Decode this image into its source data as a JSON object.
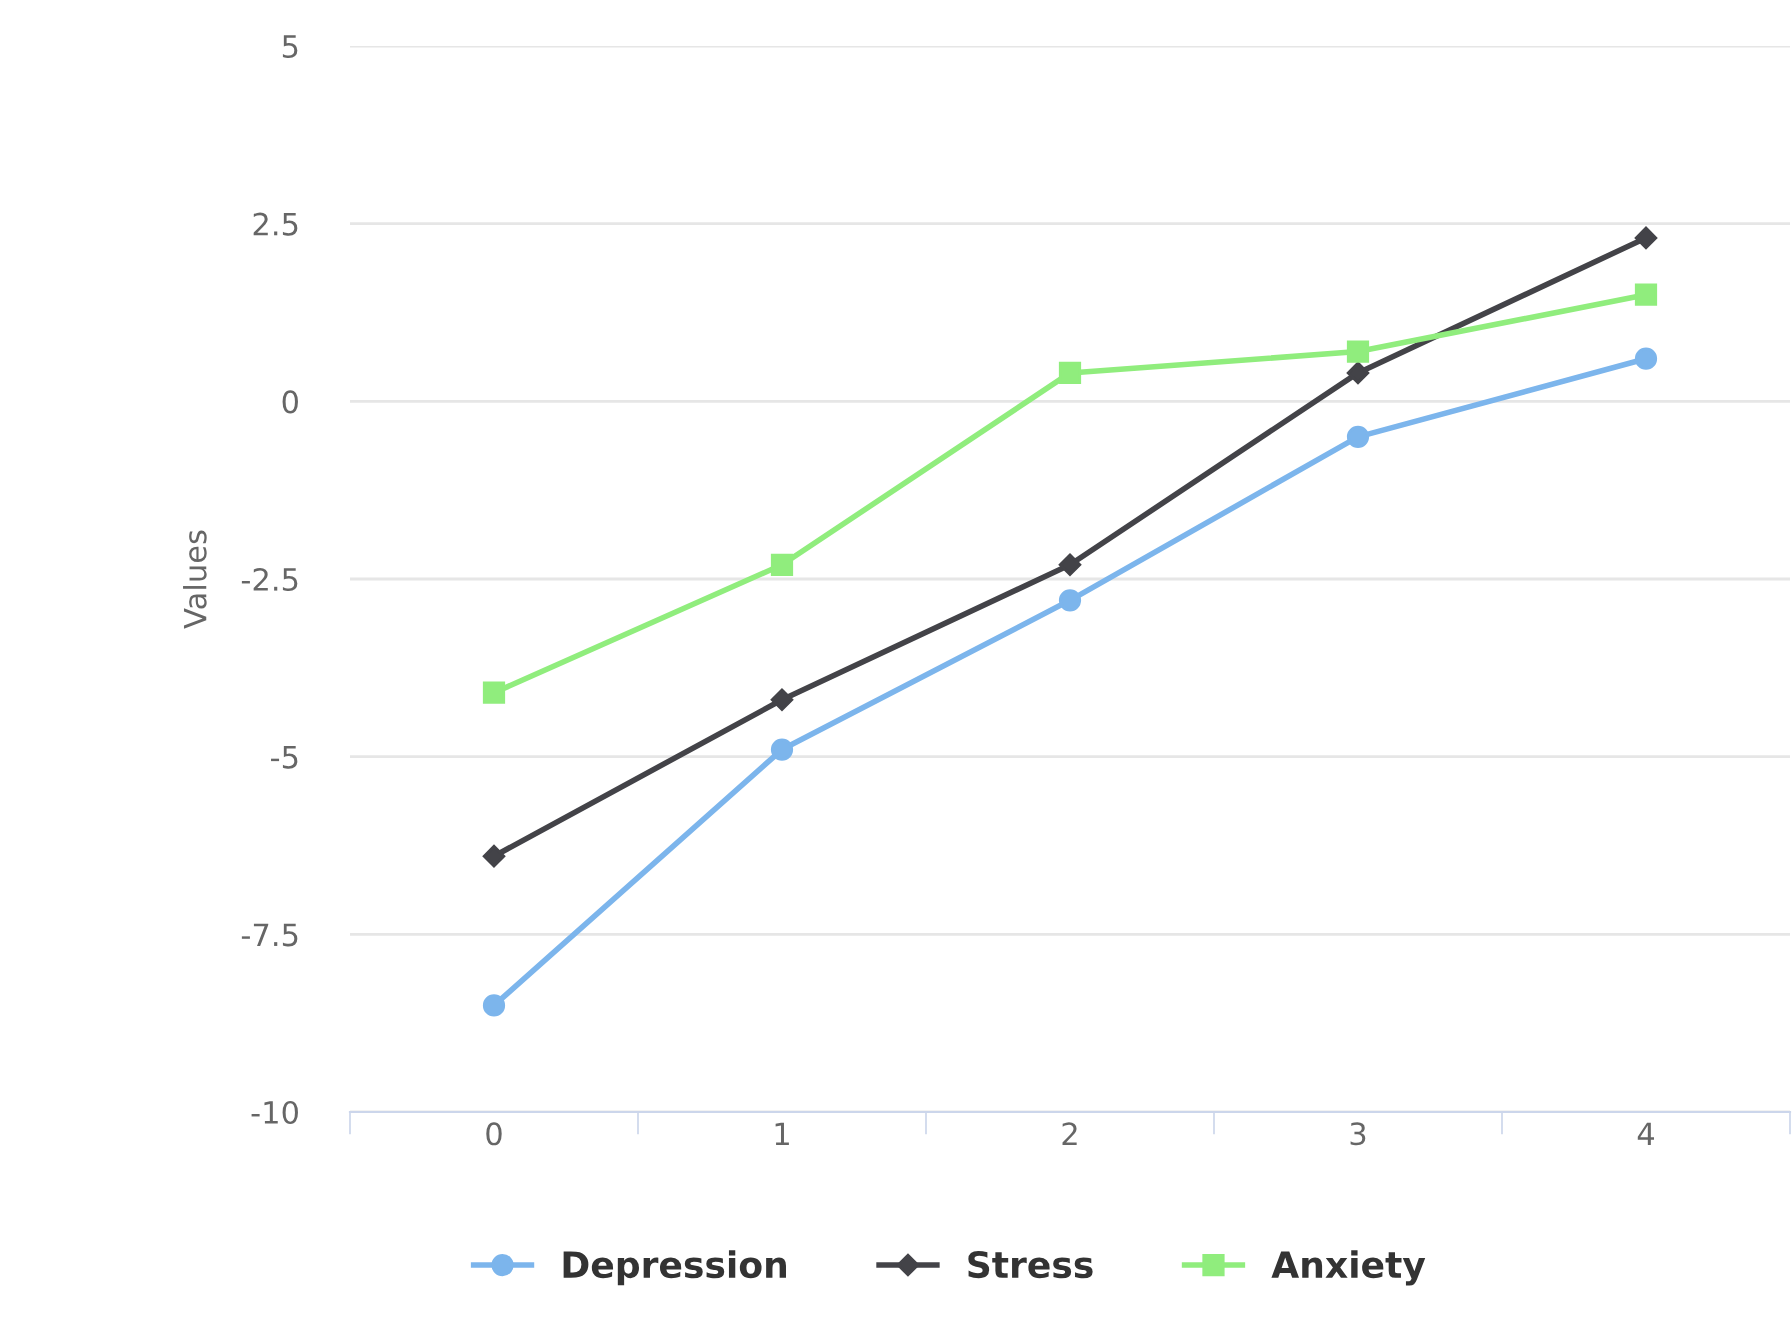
{
  "chart_data": {
    "type": "line",
    "ylabel": "Values",
    "categories": [
      "0",
      "1",
      "2",
      "3",
      "4"
    ],
    "ylim": [
      -10,
      5
    ],
    "yticks": [
      {
        "value": -10,
        "label": "-10"
      },
      {
        "value": -7.5,
        "label": "-7.5"
      },
      {
        "value": -5,
        "label": "-5"
      },
      {
        "value": -2.5,
        "label": "-2.5"
      },
      0,
      2.5,
      5
    ],
    "grid": "y",
    "legend": "bottom",
    "series": [
      {
        "name": "Depression",
        "color": "#7cb5ec",
        "marker": "circle",
        "values": [
          -8.5,
          -4.9,
          -2.8,
          -0.5,
          0.6
        ]
      },
      {
        "name": "Stress",
        "color": "#434348",
        "marker": "diamond",
        "values": [
          -6.4,
          -4.2,
          -2.3,
          0.4,
          2.3
        ]
      },
      {
        "name": "Anxiety",
        "color": "#90ed7d",
        "marker": "square",
        "values": [
          -4.1,
          -2.3,
          0.4,
          0.7,
          1.5
        ]
      }
    ]
  }
}
